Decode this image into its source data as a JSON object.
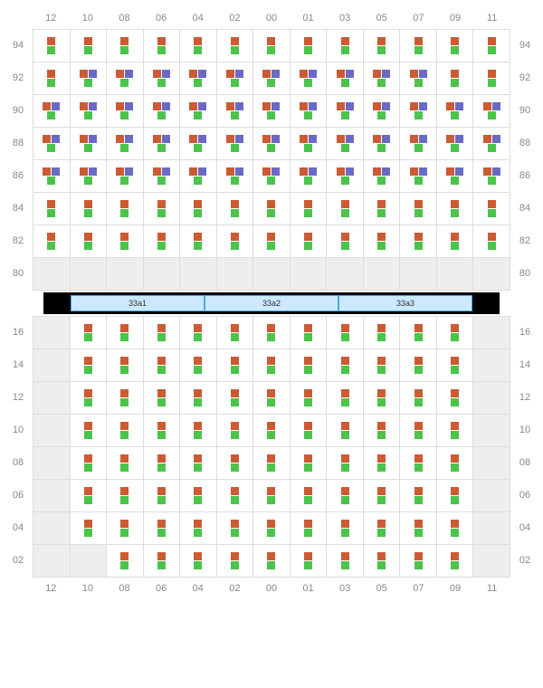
{
  "colors": {
    "orange": "#cc5a33",
    "green": "#4ac44a",
    "purple": "#6a6ac4",
    "empty_bg": "#eeeeee",
    "pdu_bg": "#cce9ff",
    "pdu_border": "#4aa8e8",
    "grid_line": "#dddddd",
    "label": "#888888"
  },
  "columns": [
    "12",
    "10",
    "08",
    "06",
    "04",
    "02",
    "00",
    "01",
    "03",
    "05",
    "07",
    "09",
    "11"
  ],
  "top_block": {
    "rows": [
      "94",
      "92",
      "90",
      "88",
      "86",
      "84",
      "82",
      "80"
    ],
    "cells": {
      "94": {
        "pattern": "OG",
        "purple_cols": [],
        "empty": []
      },
      "92": {
        "pattern": "OGP",
        "purple_cols": [
          "10",
          "08",
          "06",
          "04",
          "02",
          "00",
          "01",
          "03",
          "05",
          "07"
        ],
        "empty": []
      },
      "90": {
        "pattern": "OGP",
        "purple_cols": [
          "12",
          "10",
          "08",
          "06",
          "04",
          "02",
          "00",
          "01",
          "03",
          "05",
          "07",
          "09",
          "11"
        ],
        "empty": []
      },
      "88": {
        "pattern": "OGP",
        "purple_cols": [
          "12",
          "10",
          "08",
          "06",
          "04",
          "02",
          "00",
          "01",
          "03",
          "05",
          "07",
          "09",
          "11"
        ],
        "empty": []
      },
      "86": {
        "pattern": "OGP",
        "purple_cols": [
          "12",
          "10",
          "08",
          "06",
          "04",
          "02",
          "00",
          "01",
          "03",
          "05",
          "07",
          "09",
          "11"
        ],
        "empty": []
      },
      "84": {
        "pattern": "OG",
        "purple_cols": [],
        "empty": []
      },
      "82": {
        "pattern": "OG",
        "purple_cols": [],
        "empty": []
      },
      "80": {
        "pattern": "E",
        "purple_cols": [],
        "empty": [
          "12",
          "10",
          "08",
          "06",
          "04",
          "02",
          "00",
          "01",
          "03",
          "05",
          "07",
          "09",
          "11"
        ]
      }
    }
  },
  "pdus": [
    "33a1",
    "33a2",
    "33a3"
  ],
  "bottom_block": {
    "rows": [
      "16",
      "14",
      "12",
      "10",
      "08",
      "06",
      "04",
      "02"
    ],
    "cells": {
      "16": {
        "pattern": "OG",
        "empty": [
          "12",
          "11"
        ]
      },
      "14": {
        "pattern": "OG",
        "empty": [
          "12",
          "11"
        ]
      },
      "12": {
        "pattern": "OG",
        "empty": [
          "12",
          "11"
        ]
      },
      "10": {
        "pattern": "OG",
        "empty": [
          "12",
          "11"
        ]
      },
      "08": {
        "pattern": "OG",
        "empty": [
          "12",
          "11"
        ]
      },
      "06": {
        "pattern": "OG",
        "empty": [
          "12",
          "11"
        ]
      },
      "04": {
        "pattern": "OG",
        "empty": [
          "12",
          "11"
        ]
      },
      "02": {
        "pattern": "OG",
        "empty": [
          "12",
          "10",
          "11"
        ]
      }
    }
  }
}
